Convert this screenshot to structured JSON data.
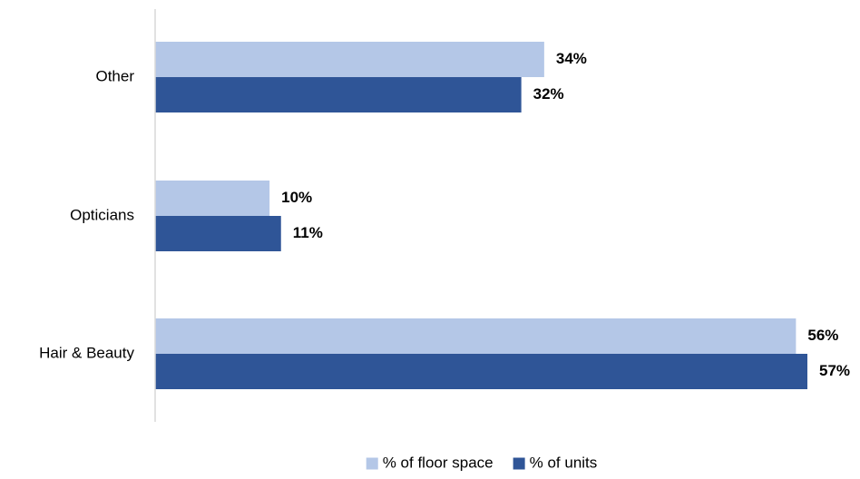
{
  "chart_data": {
    "type": "bar",
    "orientation": "horizontal",
    "categories": [
      "Other",
      "Opticians",
      "Hair & Beauty"
    ],
    "series": [
      {
        "name": "% of floor space",
        "values": [
          34,
          10,
          56
        ],
        "labels": [
          "34%",
          "10%",
          "56%"
        ],
        "color": "#b4c7e7"
      },
      {
        "name": "% of units",
        "values": [
          32,
          11,
          57
        ],
        "labels": [
          "32%",
          "11%",
          "57%"
        ],
        "color": "#2f5597"
      }
    ],
    "xlim": [
      0,
      57
    ],
    "grid": false,
    "legend_position": "bottom",
    "axis_line_color": "#d9d9d9"
  }
}
